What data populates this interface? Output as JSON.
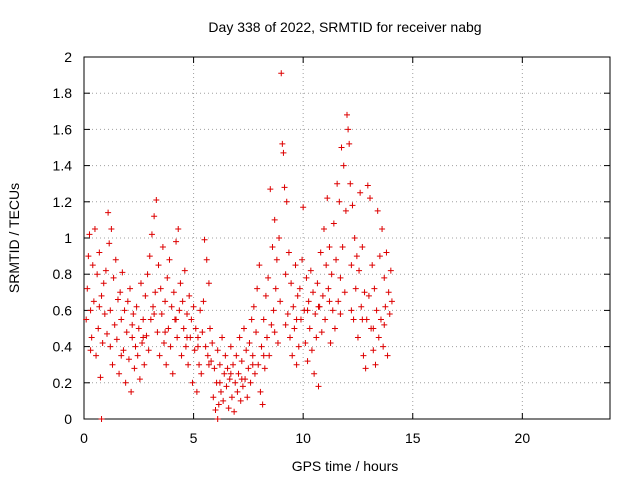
{
  "chart_data": {
    "type": "scatter",
    "title": "Day 338 of 2022, SRMTID for receiver nabg",
    "xlabel": "GPS time / hours",
    "ylabel": "SRMTID / TECUs",
    "xlim": [
      0,
      24
    ],
    "ylim": [
      0,
      2
    ],
    "xticks": [
      0,
      5,
      10,
      15,
      20
    ],
    "yticks": [
      0,
      0.2,
      0.4,
      0.6,
      0.8,
      1,
      1.2,
      1.4,
      1.6,
      1.8,
      2
    ],
    "ytick_labels": [
      "0",
      "0.2",
      "0.4",
      "0.6",
      "0.8",
      "1",
      "1.2",
      "1.4",
      "1.6",
      "1.8",
      "2"
    ],
    "xtick_labels": [
      "0",
      "5",
      "10",
      "15",
      "20"
    ],
    "grid": true,
    "marker": "+",
    "color": "#dd0000",
    "series": [
      {
        "points": [
          [
            0.1,
            0.55
          ],
          [
            0.15,
            0.72
          ],
          [
            0.2,
            0.9
          ],
          [
            0.25,
            1.02
          ],
          [
            0.3,
            0.6
          ],
          [
            0.35,
            0.45
          ],
          [
            0.4,
            0.85
          ],
          [
            0.45,
            0.65
          ],
          [
            0.5,
            1.05
          ],
          [
            0.55,
            0.35
          ],
          [
            0.6,
            0.8
          ],
          [
            0.65,
            0.5
          ],
          [
            0.7,
            0.92
          ],
          [
            0.75,
            0.23
          ],
          [
            0.8,
            0.68
          ],
          [
            0.85,
            0.42
          ],
          [
            0.9,
            0.75
          ],
          [
            0.95,
            0.58
          ],
          [
            1.0,
            0.82
          ],
          [
            1.05,
            0.47
          ],
          [
            1.1,
            1.14
          ],
          [
            1.15,
            0.97
          ],
          [
            1.2,
            0.6
          ],
          [
            1.25,
            1.05
          ],
          [
            1.3,
            0.3
          ],
          [
            1.35,
            0.78
          ],
          [
            1.4,
            0.52
          ],
          [
            1.45,
            0.88
          ],
          [
            1.5,
            0.44
          ],
          [
            1.55,
            0.66
          ],
          [
            1.6,
            0.25
          ],
          [
            1.65,
            0.7
          ],
          [
            1.7,
            0.55
          ],
          [
            1.75,
            0.81
          ],
          [
            1.8,
            0.38
          ],
          [
            1.85,
            0.6
          ],
          [
            1.9,
            0.2
          ],
          [
            1.95,
            0.48
          ],
          [
            2.0,
            0.65
          ],
          [
            2.05,
            0.33
          ],
          [
            2.1,
            0.72
          ],
          [
            2.15,
            0.15
          ],
          [
            2.2,
            0.45
          ],
          [
            2.25,
            0.58
          ],
          [
            2.3,
            0.28
          ],
          [
            2.35,
            0.4
          ],
          [
            2.4,
            0.62
          ],
          [
            2.45,
            0.35
          ],
          [
            2.5,
            0.5
          ],
          [
            2.55,
            0.22
          ],
          [
            2.6,
            0.75
          ],
          [
            2.65,
            0.42
          ],
          [
            2.7,
            0.55
          ],
          [
            2.75,
            0.3
          ],
          [
            2.8,
            0.68
          ],
          [
            2.85,
            0.46
          ],
          [
            2.9,
            0.8
          ],
          [
            2.95,
            0.38
          ],
          [
            3.0,
            0.9
          ],
          [
            3.05,
            0.55
          ],
          [
            3.1,
            1.02
          ],
          [
            3.15,
            0.62
          ],
          [
            3.2,
            1.12
          ],
          [
            3.25,
            0.7
          ],
          [
            3.3,
            1.21
          ],
          [
            3.35,
            0.48
          ],
          [
            3.4,
            0.85
          ],
          [
            3.45,
            0.35
          ],
          [
            3.5,
            0.72
          ],
          [
            3.55,
            0.58
          ],
          [
            3.6,
            0.95
          ],
          [
            3.65,
            0.42
          ],
          [
            3.7,
            0.65
          ],
          [
            3.75,
            0.3
          ],
          [
            3.8,
            0.78
          ],
          [
            3.85,
            0.5
          ],
          [
            3.9,
            0.88
          ],
          [
            3.95,
            0.4
          ],
          [
            4.0,
            0.62
          ],
          [
            4.05,
            0.25
          ],
          [
            4.1,
            0.7
          ],
          [
            4.15,
            0.55
          ],
          [
            4.2,
            0.98
          ],
          [
            4.25,
            0.45
          ],
          [
            4.3,
            1.05
          ],
          [
            4.35,
            0.6
          ],
          [
            4.4,
            0.75
          ],
          [
            4.45,
            0.35
          ],
          [
            4.5,
            0.65
          ],
          [
            4.55,
            0.5
          ],
          [
            4.6,
            0.82
          ],
          [
            4.65,
            0.4
          ],
          [
            4.7,
            0.58
          ],
          [
            4.75,
            0.3
          ],
          [
            4.8,
            0.68
          ],
          [
            4.85,
            0.45
          ],
          [
            4.9,
            0.55
          ],
          [
            4.95,
            0.2
          ],
          [
            5.0,
            0.62
          ],
          [
            5.05,
            0.38
          ],
          [
            5.1,
            0.5
          ],
          [
            5.15,
            0.15
          ],
          [
            5.2,
            0.45
          ],
          [
            5.25,
            0.3
          ],
          [
            5.3,
            0.6
          ],
          [
            5.35,
            0.25
          ],
          [
            5.4,
            0.48
          ],
          [
            5.45,
            0.65
          ],
          [
            5.5,
            0.99
          ],
          [
            5.55,
            0.4
          ],
          [
            5.6,
            0.88
          ],
          [
            5.65,
            0.35
          ],
          [
            5.7,
            0.75
          ],
          [
            5.75,
            0.5
          ],
          [
            5.8,
            0.32
          ],
          [
            5.85,
            0.42
          ],
          [
            5.9,
            0.12
          ],
          [
            5.95,
            0.28
          ],
          [
            6.0,
            0.05
          ],
          [
            6.05,
            0.2
          ],
          [
            6.1,
            0.38
          ],
          [
            6.15,
            0.08
          ],
          [
            6.2,
            0.3
          ],
          [
            6.25,
            0.15
          ],
          [
            6.3,
            0.45
          ],
          [
            6.35,
            0.1
          ],
          [
            6.4,
            0.25
          ],
          [
            6.45,
            0.35
          ],
          [
            6.5,
            0.18
          ],
          [
            6.55,
            0.28
          ],
          [
            6.6,
            0.06
          ],
          [
            6.65,
            0.22
          ],
          [
            6.7,
            0.4
          ],
          [
            6.75,
            0.12
          ],
          [
            6.8,
            0.3
          ],
          [
            6.85,
            0.04
          ],
          [
            6.9,
            0.2
          ],
          [
            6.95,
            0.35
          ],
          [
            7.0,
            0.15
          ],
          [
            7.05,
            0.25
          ],
          [
            7.1,
            0.45
          ],
          [
            7.15,
            0.1
          ],
          [
            7.2,
            0.32
          ],
          [
            7.25,
            0.18
          ],
          [
            7.3,
            0.5
          ],
          [
            7.35,
            0.22
          ],
          [
            7.4,
            0.38
          ],
          [
            7.45,
            0.12
          ],
          [
            7.5,
            0.28
          ],
          [
            7.55,
            0.42
          ],
          [
            7.6,
            0.2
          ],
          [
            7.65,
            0.55
          ],
          [
            7.7,
            0.35
          ],
          [
            7.75,
            0.62
          ],
          [
            7.8,
            0.25
          ],
          [
            7.85,
            0.48
          ],
          [
            7.9,
            0.72
          ],
          [
            7.95,
            0.3
          ],
          [
            8.0,
            0.85
          ],
          [
            8.05,
            0.15
          ],
          [
            8.1,
            0.4
          ],
          [
            8.15,
            0.08
          ],
          [
            8.2,
            0.55
          ],
          [
            8.25,
            0.28
          ],
          [
            8.3,
            0.68
          ],
          [
            8.35,
            0.45
          ],
          [
            8.4,
            0.78
          ],
          [
            8.45,
            0.35
          ],
          [
            8.5,
            1.27
          ],
          [
            8.55,
            0.52
          ],
          [
            8.6,
            0.95
          ],
          [
            8.65,
            0.6
          ],
          [
            8.7,
            1.1
          ],
          [
            8.75,
            0.72
          ],
          [
            8.8,
            0.88
          ],
          [
            8.85,
            0.42
          ],
          [
            8.9,
            1.0
          ],
          [
            8.95,
            0.65
          ],
          [
            9.0,
            1.91
          ],
          [
            9.05,
            1.52
          ],
          [
            9.1,
            1.47
          ],
          [
            9.15,
            1.28
          ],
          [
            9.2,
            0.8
          ],
          [
            9.25,
            1.2
          ],
          [
            9.3,
            0.58
          ],
          [
            9.35,
            0.92
          ],
          [
            9.4,
            0.45
          ],
          [
            9.45,
            0.75
          ],
          [
            9.5,
            0.35
          ],
          [
            9.55,
            0.62
          ],
          [
            9.6,
            0.5
          ],
          [
            9.65,
            0.85
          ],
          [
            9.7,
            0.3
          ],
          [
            9.75,
            0.68
          ],
          [
            9.8,
            0.4
          ],
          [
            9.85,
            0.72
          ],
          [
            9.9,
            0.55
          ],
          [
            9.95,
            0.88
          ],
          [
            10.0,
            1.17
          ],
          [
            10.05,
            0.6
          ],
          [
            10.1,
            0.42
          ],
          [
            10.15,
            0.78
          ],
          [
            10.2,
            0.32
          ],
          [
            10.25,
            0.65
          ],
          [
            10.3,
            0.5
          ],
          [
            10.35,
            0.82
          ],
          [
            10.4,
            0.38
          ],
          [
            10.45,
            0.7
          ],
          [
            10.5,
            0.25
          ],
          [
            10.55,
            0.58
          ],
          [
            10.6,
            0.45
          ],
          [
            10.65,
            0.75
          ],
          [
            10.7,
            0.18
          ],
          [
            10.75,
            0.62
          ],
          [
            10.8,
            0.92
          ],
          [
            10.85,
            0.48
          ],
          [
            10.9,
            0.68
          ],
          [
            10.95,
            1.05
          ],
          [
            11.0,
            0.55
          ],
          [
            11.05,
            0.85
          ],
          [
            11.1,
            1.22
          ],
          [
            11.15,
            0.72
          ],
          [
            11.2,
            0.95
          ],
          [
            11.25,
            0.42
          ],
          [
            11.3,
            0.8
          ],
          [
            11.35,
            0.6
          ],
          [
            11.4,
            1.08
          ],
          [
            11.45,
            0.5
          ],
          [
            11.5,
            0.88
          ],
          [
            11.55,
            1.3
          ],
          [
            11.6,
            0.65
          ],
          [
            11.65,
            1.2
          ],
          [
            11.7,
            0.78
          ],
          [
            11.75,
            1.5
          ],
          [
            11.8,
            0.95
          ],
          [
            11.85,
            1.4
          ],
          [
            11.9,
            0.7
          ],
          [
            11.95,
            1.15
          ],
          [
            12.0,
            1.68
          ],
          [
            12.05,
            1.6
          ],
          [
            12.1,
            1.52
          ],
          [
            12.15,
            1.3
          ],
          [
            12.2,
            0.85
          ],
          [
            12.25,
            1.18
          ],
          [
            12.3,
            0.55
          ],
          [
            12.35,
            1.0
          ],
          [
            12.4,
            0.72
          ],
          [
            12.45,
            0.9
          ],
          [
            12.5,
            0.45
          ],
          [
            12.55,
            0.82
          ],
          [
            12.6,
            1.25
          ],
          [
            12.65,
            0.62
          ],
          [
            12.7,
            0.95
          ],
          [
            12.75,
            0.35
          ],
          [
            12.8,
            0.7
          ],
          [
            12.85,
            0.28
          ],
          [
            12.9,
            0.55
          ],
          [
            12.95,
            1.29
          ],
          [
            13.0,
            0.68
          ],
          [
            13.05,
            1.22
          ],
          [
            13.1,
            0.5
          ],
          [
            13.15,
            0.85
          ],
          [
            13.2,
            0.38
          ],
          [
            13.25,
            0.72
          ],
          [
            13.3,
            0.3
          ],
          [
            13.35,
            0.6
          ],
          [
            13.4,
            1.15
          ],
          [
            13.45,
            0.45
          ],
          [
            13.5,
            0.9
          ],
          [
            13.55,
            0.55
          ],
          [
            13.6,
            1.05
          ],
          [
            13.65,
            0.4
          ],
          [
            13.7,
            0.78
          ],
          [
            13.75,
            0.62
          ],
          [
            13.8,
            0.92
          ],
          [
            13.85,
            0.35
          ],
          [
            13.9,
            0.7
          ],
          [
            13.95,
            0.58
          ],
          [
            14.0,
            0.82
          ],
          [
            14.05,
            0.65
          ],
          [
            0.3,
            0.38
          ],
          [
            0.7,
            0.62
          ],
          [
            1.2,
            0.4
          ],
          [
            1.7,
            0.35
          ],
          [
            2.2,
            0.52
          ],
          [
            2.7,
            0.45
          ],
          [
            3.2,
            0.58
          ],
          [
            3.7,
            0.48
          ],
          [
            4.2,
            0.55
          ],
          [
            4.7,
            0.45
          ],
          [
            5.2,
            0.4
          ],
          [
            5.7,
            0.3
          ],
          [
            6.2,
            0.2
          ],
          [
            6.7,
            0.25
          ],
          [
            7.2,
            0.22
          ],
          [
            7.7,
            0.3
          ],
          [
            8.2,
            0.35
          ],
          [
            8.7,
            0.48
          ],
          [
            9.2,
            0.52
          ],
          [
            9.7,
            0.55
          ],
          [
            10.2,
            0.6
          ],
          [
            10.7,
            0.62
          ],
          [
            11.2,
            0.65
          ],
          [
            11.7,
            0.58
          ],
          [
            12.2,
            0.6
          ],
          [
            12.7,
            0.55
          ],
          [
            13.2,
            0.5
          ],
          [
            13.7,
            0.52
          ],
          [
            0.8,
            0.0
          ],
          [
            6.1,
            0.0
          ]
        ]
      }
    ]
  }
}
